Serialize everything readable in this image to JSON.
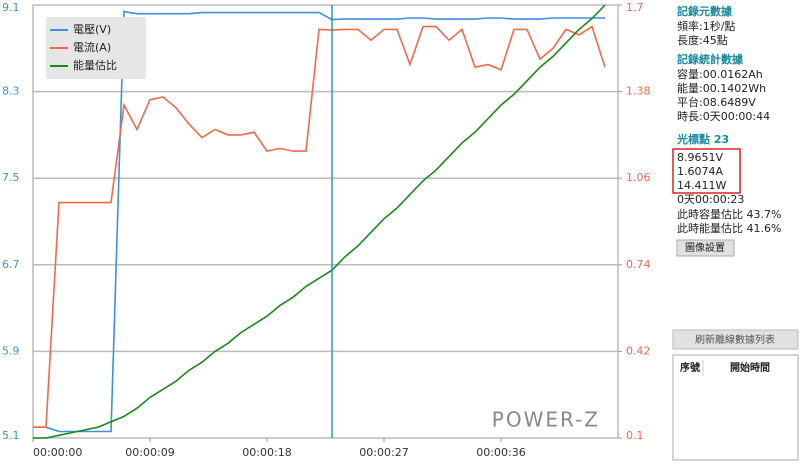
{
  "chart_data": {
    "type": "line",
    "x": [
      0,
      1,
      2,
      3,
      4,
      5,
      6,
      7,
      8,
      9,
      10,
      11,
      12,
      13,
      14,
      15,
      16,
      17,
      18,
      19,
      20,
      21,
      22,
      23,
      24,
      25,
      26,
      27,
      28,
      29,
      30,
      31,
      32,
      33,
      34,
      35,
      36,
      37,
      38,
      39,
      40,
      41,
      42,
      43,
      44
    ],
    "xlim": [
      0,
      45
    ],
    "xticks": [
      {
        "value": 0,
        "label": "00:00:00"
      },
      {
        "value": 9,
        "label": "00:00:09"
      },
      {
        "value": 18,
        "label": "00:00:18"
      },
      {
        "value": 27,
        "label": "00:00:27"
      },
      {
        "value": 36,
        "label": "00:00:36"
      }
    ],
    "ylim": [
      5.1,
      9.1
    ],
    "yticks": [
      5.1,
      5.9,
      6.7,
      7.5,
      8.3,
      9.1
    ],
    "y2lim": [
      0.1,
      1.7
    ],
    "y2ticks": [
      0.1,
      0.42,
      0.74,
      1.06,
      1.38,
      1.7
    ],
    "grid": true,
    "legend": "upper left",
    "cursor": 23,
    "watermark": "POWER-Z",
    "series": [
      {
        "name": "電壓(V)",
        "color": "#3d8fe0",
        "values": [
          5.2,
          5.2,
          5.16,
          5.16,
          5.16,
          5.16,
          5.16,
          9.04,
          9.02,
          9.02,
          9.02,
          9.02,
          9.02,
          9.03,
          9.03,
          9.03,
          9.03,
          9.03,
          9.03,
          9.03,
          9.03,
          9.03,
          9.03,
          8.9651,
          8.97,
          8.97,
          8.97,
          8.97,
          8.97,
          8.98,
          8.98,
          8.97,
          8.97,
          8.97,
          8.97,
          8.98,
          8.98,
          8.97,
          8.97,
          8.97,
          8.98,
          8.98,
          8.98,
          8.98,
          8.98
        ]
      },
      {
        "name": "電流(A)",
        "color": "#f06a4a",
        "axis": "y2",
        "values": [
          0.14,
          0.14,
          0.97,
          0.97,
          0.97,
          0.97,
          0.97,
          1.33,
          1.24,
          1.35,
          1.36,
          1.32,
          1.26,
          1.21,
          1.24,
          1.22,
          1.22,
          1.23,
          1.16,
          1.17,
          1.16,
          1.16,
          1.61,
          1.6074,
          1.61,
          1.61,
          1.57,
          1.61,
          1.61,
          1.48,
          1.62,
          1.62,
          1.57,
          1.61,
          1.47,
          1.48,
          1.46,
          1.61,
          1.61,
          1.5,
          1.54,
          1.61,
          1.59,
          1.62,
          1.47
        ]
      },
      {
        "name": "能量估比",
        "color": "#1a8a1a",
        "axis": "y2",
        "values": [
          0.1,
          0.1,
          0.11,
          0.12,
          0.13,
          0.14,
          0.16,
          0.18,
          0.21,
          0.25,
          0.28,
          0.31,
          0.35,
          0.38,
          0.42,
          0.45,
          0.49,
          0.52,
          0.55,
          0.59,
          0.62,
          0.66,
          0.69,
          0.72,
          0.77,
          0.81,
          0.86,
          0.91,
          0.95,
          1.0,
          1.05,
          1.09,
          1.14,
          1.19,
          1.23,
          1.28,
          1.33,
          1.37,
          1.42,
          1.47,
          1.51,
          1.56,
          1.61,
          1.65,
          1.7
        ]
      }
    ]
  },
  "sidebar": {
    "meta_title": "記錄元數據",
    "meta": [
      "頻率:1秒/點",
      "長度:45點"
    ],
    "stats_title": "記錄統計數據",
    "stats": [
      "容量:00.0162Ah",
      "能量:00.1402Wh",
      "平台:08.6489V",
      "時長:0天00:00:44"
    ],
    "cursor_label": "光標點",
    "cursor_index": "23",
    "cursor_values": [
      "8.9651V",
      "1.6074A",
      "14.411W"
    ],
    "cursor_info": [
      "0天00:00:23",
      "此時容量估比 43.7%",
      "此時能量估比 41.6%"
    ],
    "settings_button": "圖像設置",
    "refresh_button": "刷新離線數據列表",
    "table_headers": [
      "序號",
      "開始時間"
    ]
  }
}
